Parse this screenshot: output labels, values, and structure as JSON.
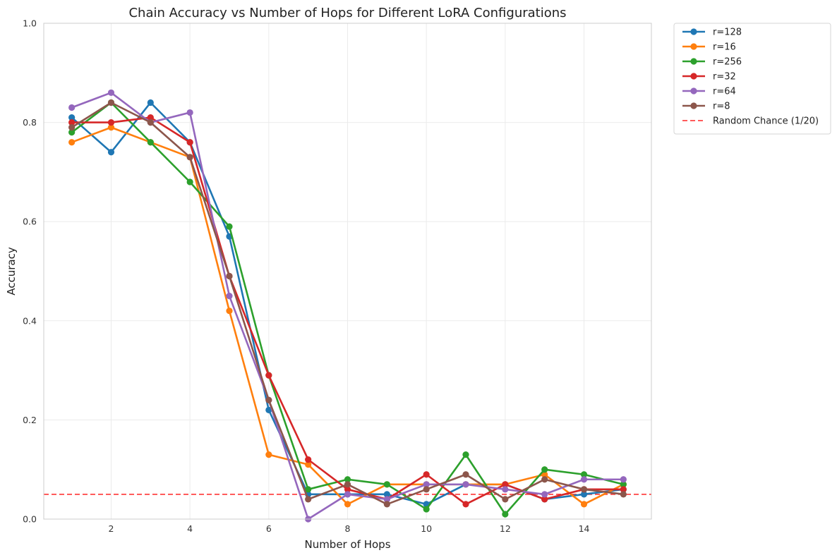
{
  "chart_data": {
    "type": "line",
    "title": "Chain Accuracy vs Number of Hops for Different LoRA Configurations",
    "xlabel": "Number of Hops",
    "ylabel": "Accuracy",
    "xlim": [
      0.29,
      15.71
    ],
    "ylim": [
      0,
      1
    ],
    "xticks": [
      2,
      4,
      6,
      8,
      10,
      12,
      14
    ],
    "yticks": [
      0.0,
      0.2,
      0.4,
      0.6,
      0.8,
      1.0
    ],
    "xtick_labels": [
      "2",
      "4",
      "6",
      "8",
      "10",
      "12",
      "14"
    ],
    "ytick_labels": [
      "0.0",
      "0.2",
      "0.4",
      "0.6",
      "0.8",
      "1.0"
    ],
    "grid": true,
    "legend_position": "outside-top-right",
    "x": [
      1,
      2,
      3,
      4,
      5,
      6,
      7,
      8,
      9,
      10,
      11,
      12,
      13,
      14,
      15
    ],
    "series": [
      {
        "name": "r=128",
        "color": "#1f77b4",
        "values": [
          0.81,
          0.74,
          0.84,
          0.76,
          0.57,
          0.22,
          0.05,
          0.05,
          0.05,
          0.03,
          0.07,
          0.07,
          0.04,
          0.05,
          0.06
        ]
      },
      {
        "name": "r=16",
        "color": "#ff7f0e",
        "values": [
          0.76,
          0.79,
          0.76,
          0.73,
          0.42,
          0.13,
          0.11,
          0.03,
          0.07,
          0.07,
          0.07,
          0.07,
          0.09,
          0.03,
          0.07
        ]
      },
      {
        "name": "r=256",
        "color": "#2ca02c",
        "values": [
          0.78,
          0.84,
          0.76,
          0.68,
          0.59,
          0.29,
          0.06,
          0.08,
          0.07,
          0.02,
          0.13,
          0.01,
          0.1,
          0.09,
          0.07
        ]
      },
      {
        "name": "r=32",
        "color": "#d62728",
        "values": [
          0.8,
          0.8,
          0.81,
          0.76,
          0.49,
          0.29,
          0.12,
          0.06,
          0.04,
          0.09,
          0.03,
          0.07,
          0.04,
          0.06,
          0.06
        ]
      },
      {
        "name": "r=64",
        "color": "#9467bd",
        "values": [
          0.83,
          0.86,
          0.8,
          0.82,
          0.45,
          0.24,
          0.0,
          0.05,
          0.04,
          0.07,
          0.07,
          0.06,
          0.05,
          0.08,
          0.08
        ]
      },
      {
        "name": "r=8",
        "color": "#8c564b",
        "values": [
          0.79,
          0.84,
          0.8,
          0.73,
          0.49,
          0.24,
          0.04,
          0.07,
          0.03,
          0.06,
          0.09,
          0.04,
          0.08,
          0.06,
          0.05
        ]
      }
    ],
    "reference_line": {
      "name": "Random Chance (1/20)",
      "y": 0.05,
      "color": "#ff4444",
      "style": "dashed"
    }
  }
}
